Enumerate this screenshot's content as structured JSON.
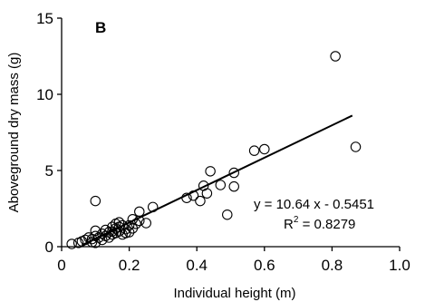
{
  "chart_data": {
    "type": "scatter",
    "panel_label": "B",
    "xlabel": "Individual height (m)",
    "ylabel": "Aboveground dry mass (g)",
    "xlim": [
      0,
      1.0
    ],
    "ylim": [
      0,
      15
    ],
    "xticks": [
      0,
      0.2,
      0.4,
      0.6,
      0.8,
      1.0
    ],
    "xtick_labels": [
      "0",
      "0.2",
      "0.4",
      "0.6",
      "0.8",
      "1.0"
    ],
    "yticks": [
      0,
      5,
      10,
      15
    ],
    "ytick_labels": [
      "0",
      "5",
      "10",
      "15"
    ],
    "grid": false,
    "marker": "open-circle",
    "points": [
      [
        0.03,
        0.18
      ],
      [
        0.05,
        0.25
      ],
      [
        0.06,
        0.35
      ],
      [
        0.07,
        0.45
      ],
      [
        0.08,
        0.6
      ],
      [
        0.09,
        0.3
      ],
      [
        0.09,
        0.5
      ],
      [
        0.1,
        0.25
      ],
      [
        0.1,
        0.7
      ],
      [
        0.1,
        3.0
      ],
      [
        0.1,
        1.05
      ],
      [
        0.11,
        0.6
      ],
      [
        0.12,
        0.85
      ],
      [
        0.12,
        0.45
      ],
      [
        0.13,
        1.1
      ],
      [
        0.13,
        0.7
      ],
      [
        0.14,
        0.95
      ],
      [
        0.14,
        0.6
      ],
      [
        0.15,
        1.3
      ],
      [
        0.15,
        0.8
      ],
      [
        0.15,
        1.0
      ],
      [
        0.16,
        1.5
      ],
      [
        0.16,
        1.2
      ],
      [
        0.16,
        0.9
      ],
      [
        0.17,
        1.6
      ],
      [
        0.17,
        1.0
      ],
      [
        0.17,
        1.3
      ],
      [
        0.18,
        0.8
      ],
      [
        0.18,
        1.4
      ],
      [
        0.19,
        1.15
      ],
      [
        0.19,
        0.9
      ],
      [
        0.2,
        0.95
      ],
      [
        0.2,
        1.4
      ],
      [
        0.21,
        1.8
      ],
      [
        0.21,
        1.2
      ],
      [
        0.22,
        1.5
      ],
      [
        0.23,
        2.3
      ],
      [
        0.23,
        1.7
      ],
      [
        0.25,
        1.55
      ],
      [
        0.27,
        2.6
      ],
      [
        0.37,
        3.2
      ],
      [
        0.39,
        3.35
      ],
      [
        0.41,
        3.0
      ],
      [
        0.42,
        4.0
      ],
      [
        0.43,
        3.5
      ],
      [
        0.44,
        4.95
      ],
      [
        0.47,
        4.05
      ],
      [
        0.49,
        2.1
      ],
      [
        0.51,
        4.85
      ],
      [
        0.51,
        3.95
      ],
      [
        0.57,
        6.3
      ],
      [
        0.6,
        6.4
      ],
      [
        0.81,
        12.5
      ],
      [
        0.87,
        6.55
      ]
    ],
    "regression": {
      "slope": 10.64,
      "intercept": -0.5451,
      "x_range": [
        0.06,
        0.86
      ]
    },
    "annotations": {
      "equation": "y = 10.64 x - 0.5451",
      "r2_prefix": "R",
      "r2_sup": "2",
      "r2_suffix": " = 0.8279"
    }
  }
}
